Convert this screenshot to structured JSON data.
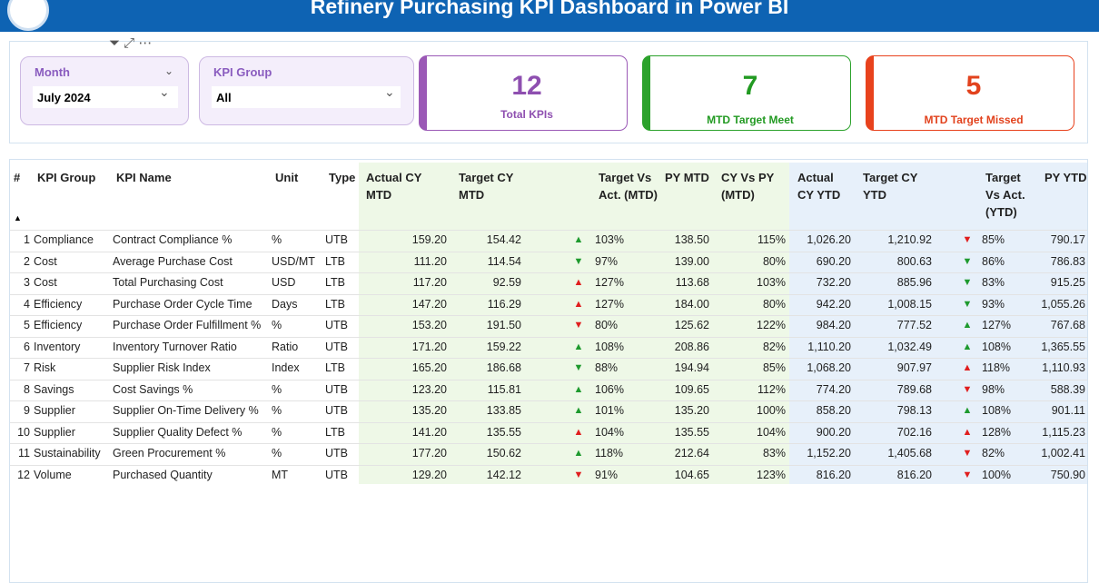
{
  "header": {
    "title": "Refinery Purchasing KPI Dashboard in Power BI"
  },
  "slicers": [
    {
      "label": "Month",
      "value": "July 2024"
    },
    {
      "label": "KPI Group",
      "value": "All"
    }
  ],
  "cards": [
    {
      "value": "12",
      "label": "Total KPIs"
    },
    {
      "value": "7",
      "label": "MTD Target Meet"
    },
    {
      "value": "5",
      "label": "MTD Target Missed"
    }
  ],
  "table": {
    "columns": [
      "#",
      "KPI Group",
      "KPI Name",
      "Unit",
      "Type",
      "Actual CY MTD",
      "Target CY MTD",
      "Target Vs Act. (MTD)",
      "PY MTD",
      "CY Vs PY (MTD)",
      "Actual CY YTD",
      "Target CY YTD",
      "Target Vs Act. (YTD)",
      "PY YTD"
    ],
    "rows": [
      [
        "1",
        "Compliance",
        "Contract Compliance %",
        "%",
        "UTB",
        "159.20",
        "154.42",
        "▲",
        "103%",
        "138.50",
        "115%",
        "1,026.20",
        "1,210.92",
        "▼",
        "85%",
        "790.17"
      ],
      [
        "2",
        "Cost",
        "Average Purchase Cost",
        "USD/MT",
        "LTB",
        "111.20",
        "114.54",
        "▼",
        "97%",
        "139.00",
        "80%",
        "690.20",
        "800.63",
        "▼",
        "86%",
        "786.83"
      ],
      [
        "3",
        "Cost",
        "Total Purchasing Cost",
        "USD",
        "LTB",
        "117.20",
        "92.59",
        "▲",
        "127%",
        "113.68",
        "103%",
        "732.20",
        "885.96",
        "▼",
        "83%",
        "915.25"
      ],
      [
        "4",
        "Efficiency",
        "Purchase Order Cycle Time",
        "Days",
        "LTB",
        "147.20",
        "116.29",
        "▲",
        "127%",
        "184.00",
        "80%",
        "942.20",
        "1,008.15",
        "▼",
        "93%",
        "1,055.26"
      ],
      [
        "5",
        "Efficiency",
        "Purchase Order Fulfillment %",
        "%",
        "UTB",
        "153.20",
        "191.50",
        "▼",
        "80%",
        "125.62",
        "122%",
        "984.20",
        "777.52",
        "▲",
        "127%",
        "767.68"
      ],
      [
        "6",
        "Inventory",
        "Inventory Turnover Ratio",
        "Ratio",
        "UTB",
        "171.20",
        "159.22",
        "▲",
        "108%",
        "208.86",
        "82%",
        "1,110.20",
        "1,032.49",
        "▲",
        "108%",
        "1,365.55"
      ],
      [
        "7",
        "Risk",
        "Supplier Risk Index",
        "Index",
        "LTB",
        "165.20",
        "186.68",
        "▼",
        "88%",
        "194.94",
        "85%",
        "1,068.20",
        "907.97",
        "▲",
        "118%",
        "1,110.93"
      ],
      [
        "8",
        "Savings",
        "Cost Savings %",
        "%",
        "UTB",
        "123.20",
        "115.81",
        "▲",
        "106%",
        "109.65",
        "112%",
        "774.20",
        "789.68",
        "▼",
        "98%",
        "588.39"
      ],
      [
        "9",
        "Supplier",
        "Supplier On-Time Delivery %",
        "%",
        "UTB",
        "135.20",
        "133.85",
        "▲",
        "101%",
        "135.20",
        "100%",
        "858.20",
        "798.13",
        "▲",
        "108%",
        "901.11"
      ],
      [
        "10",
        "Supplier",
        "Supplier Quality Defect %",
        "%",
        "LTB",
        "141.20",
        "135.55",
        "▲",
        "104%",
        "135.55",
        "104%",
        "900.20",
        "702.16",
        "▲",
        "128%",
        "1,115.23"
      ],
      [
        "11",
        "Sustainability",
        "Green Procurement %",
        "%",
        "UTB",
        "177.20",
        "150.62",
        "▲",
        "118%",
        "212.64",
        "83%",
        "1,152.20",
        "1,405.68",
        "▼",
        "82%",
        "1,002.41"
      ],
      [
        "12",
        "Volume",
        "Purchased Quantity",
        "MT",
        "UTB",
        "129.20",
        "142.12",
        "▼",
        "91%",
        "104.65",
        "123%",
        "816.20",
        "816.20",
        "▼",
        "100%",
        "750.90"
      ]
    ]
  }
}
